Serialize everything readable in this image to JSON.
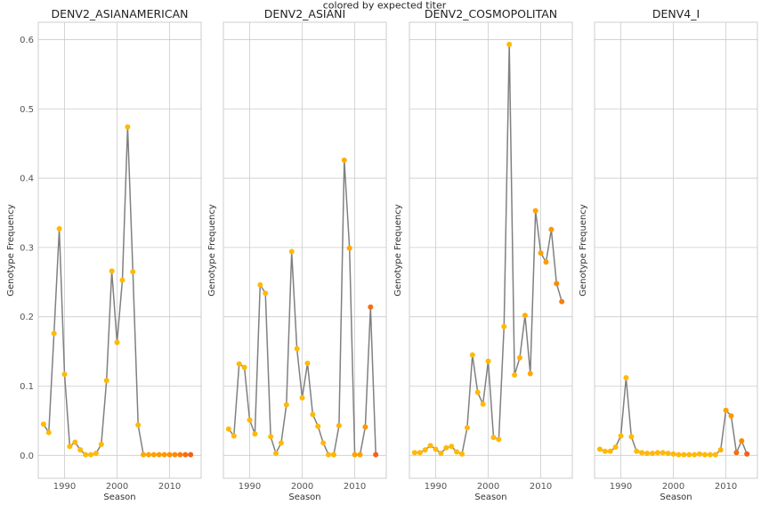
{
  "chart_data": {
    "type": "line",
    "suptitle": "colored by expected titer",
    "xlabel": "Season",
    "ylabel": "Genotype Frequency",
    "xlim": [
      1985,
      2016
    ],
    "ylim": [
      -0.033,
      0.625
    ],
    "xticks": [
      1990,
      2000,
      2010
    ],
    "yticks": [
      0.0,
      0.1,
      0.2,
      0.3,
      0.4,
      0.5,
      0.6
    ],
    "xtick_labels": [
      "1990",
      "2000",
      "2010"
    ],
    "ytick_labels": [
      "0.0",
      "0.1",
      "0.2",
      "0.3",
      "0.4",
      "0.5",
      "0.6"
    ],
    "grid": true,
    "line_color": "#808080",
    "point_color_scale": [
      "#ffc107",
      "#ff9800",
      "#f4511e"
    ],
    "panels": [
      {
        "title": "DENV2_ASIANAMERICAN",
        "x": [
          1986,
          1987,
          1988,
          1989,
          1990,
          1991,
          1992,
          1993,
          1994,
          1995,
          1996,
          1997,
          1998,
          1999,
          2000,
          2001,
          2002,
          2003,
          2004,
          2005,
          2006,
          2007,
          2008,
          2009,
          2010,
          2011,
          2012,
          2013,
          2014
        ],
        "y": [
          0.045,
          0.033,
          0.176,
          0.327,
          0.117,
          0.013,
          0.019,
          0.008,
          0.001,
          0.001,
          0.003,
          0.016,
          0.108,
          0.266,
          0.163,
          0.253,
          0.474,
          0.265,
          0.044,
          0.001,
          0.001,
          0.001,
          0.001,
          0.001,
          0.001,
          0.001,
          0.001,
          0.001,
          0.001
        ],
        "titer": [
          0.1,
          0.1,
          0.1,
          0.1,
          0.1,
          0.1,
          0.1,
          0.1,
          0.1,
          0.1,
          0.1,
          0.1,
          0.1,
          0.1,
          0.1,
          0.1,
          0.1,
          0.1,
          0.1,
          0.3,
          0.35,
          0.4,
          0.45,
          0.5,
          0.55,
          0.6,
          0.7,
          0.8,
          0.9
        ]
      },
      {
        "title": "DENV2_ASIANI",
        "x": [
          1986,
          1987,
          1988,
          1989,
          1990,
          1991,
          1992,
          1993,
          1994,
          1995,
          1996,
          1997,
          1998,
          1999,
          2000,
          2001,
          2002,
          2003,
          2004,
          2005,
          2006,
          2007,
          2008,
          2009,
          2010,
          2011,
          2012,
          2013,
          2014
        ],
        "y": [
          0.038,
          0.028,
          0.132,
          0.127,
          0.051,
          0.031,
          0.246,
          0.234,
          0.027,
          0.003,
          0.018,
          0.073,
          0.294,
          0.154,
          0.083,
          0.133,
          0.059,
          0.042,
          0.018,
          0.001,
          0.001,
          0.043,
          0.426,
          0.299,
          0.001,
          0.001,
          0.041,
          0.214,
          0.001
        ],
        "titer": [
          0.1,
          0.1,
          0.1,
          0.1,
          0.1,
          0.1,
          0.1,
          0.1,
          0.1,
          0.1,
          0.1,
          0.1,
          0.1,
          0.1,
          0.1,
          0.1,
          0.1,
          0.1,
          0.1,
          0.1,
          0.15,
          0.2,
          0.25,
          0.3,
          0.35,
          0.4,
          0.5,
          0.8,
          0.9
        ]
      },
      {
        "title": "DENV2_COSMOPOLITAN",
        "x": [
          1986,
          1987,
          1988,
          1989,
          1990,
          1991,
          1992,
          1993,
          1994,
          1995,
          1996,
          1997,
          1998,
          1999,
          2000,
          2001,
          2002,
          2003,
          2004,
          2005,
          2006,
          2007,
          2008,
          2009,
          2010,
          2011,
          2012,
          2013,
          2014
        ],
        "y": [
          0.004,
          0.004,
          0.008,
          0.014,
          0.009,
          0.003,
          0.011,
          0.013,
          0.005,
          0.002,
          0.04,
          0.145,
          0.091,
          0.074,
          0.136,
          0.026,
          0.023,
          0.186,
          0.593,
          0.116,
          0.141,
          0.202,
          0.118,
          0.353,
          0.292,
          0.279,
          0.326,
          0.248,
          0.222
        ],
        "titer": [
          0.1,
          0.1,
          0.1,
          0.1,
          0.1,
          0.1,
          0.1,
          0.1,
          0.1,
          0.1,
          0.1,
          0.1,
          0.1,
          0.1,
          0.1,
          0.1,
          0.1,
          0.1,
          0.1,
          0.1,
          0.2,
          0.25,
          0.3,
          0.35,
          0.4,
          0.45,
          0.5,
          0.6,
          0.7
        ]
      },
      {
        "title": "DENV4_I",
        "x": [
          1986,
          1987,
          1988,
          1989,
          1990,
          1991,
          1992,
          1993,
          1994,
          1995,
          1996,
          1997,
          1998,
          1999,
          2000,
          2001,
          2002,
          2003,
          2004,
          2005,
          2006,
          2007,
          2008,
          2009,
          2010,
          2011,
          2012,
          2013,
          2014
        ],
        "y": [
          0.009,
          0.006,
          0.006,
          0.012,
          0.028,
          0.112,
          0.027,
          0.006,
          0.004,
          0.003,
          0.003,
          0.004,
          0.004,
          0.003,
          0.002,
          0.001,
          0.001,
          0.001,
          0.001,
          0.002,
          0.001,
          0.001,
          0.001,
          0.008,
          0.065,
          0.057,
          0.004,
          0.021,
          0.002
        ],
        "titer": [
          0.1,
          0.1,
          0.1,
          0.1,
          0.1,
          0.1,
          0.1,
          0.1,
          0.1,
          0.1,
          0.1,
          0.1,
          0.1,
          0.1,
          0.1,
          0.1,
          0.1,
          0.1,
          0.1,
          0.1,
          0.1,
          0.1,
          0.1,
          0.2,
          0.4,
          0.5,
          0.8,
          0.6,
          0.9
        ]
      }
    ]
  }
}
